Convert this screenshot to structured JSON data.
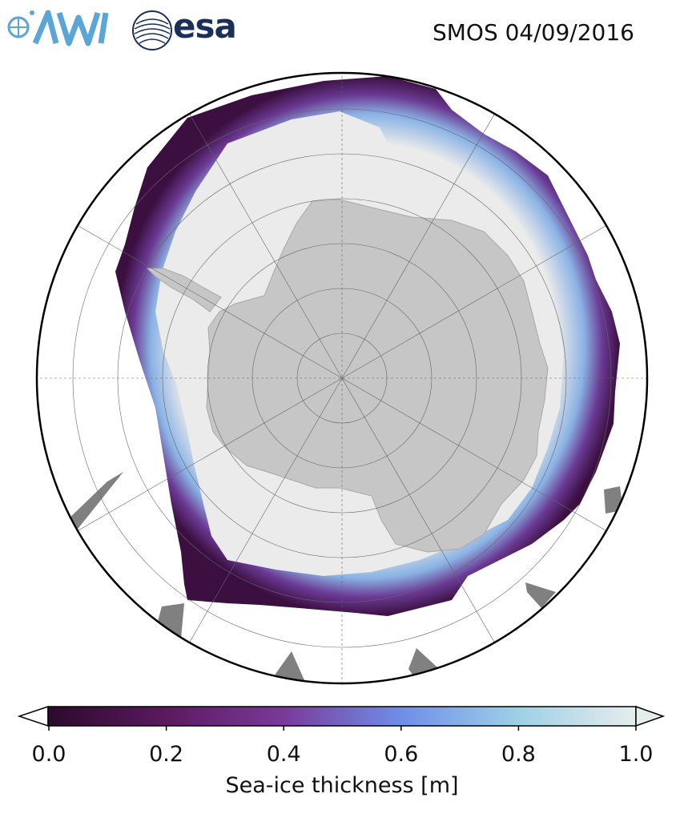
{
  "logos": {
    "awi_name": "AWI",
    "esa_name": "esa"
  },
  "title": "SMOS 04/09/2016",
  "map": {
    "projection": "south-polar-stereographic",
    "colors": {
      "land": "#c6c6c6",
      "missing_data": "#808080",
      "thick_ice": "#ebebeb",
      "ocean": "#ffffff",
      "graticule": "#666666"
    }
  },
  "colorbar": {
    "label": "Sea-ice thickness [m]",
    "ticks": [
      "0.0",
      "0.2",
      "0.4",
      "0.6",
      "0.8",
      "1.0"
    ],
    "range": [
      0.0,
      1.0
    ],
    "colormap_stops": [
      "#2b0a2c",
      "#5a1a5e",
      "#7a3a9a",
      "#6f8ee8",
      "#9ed0e6",
      "#e6eded"
    ]
  }
}
